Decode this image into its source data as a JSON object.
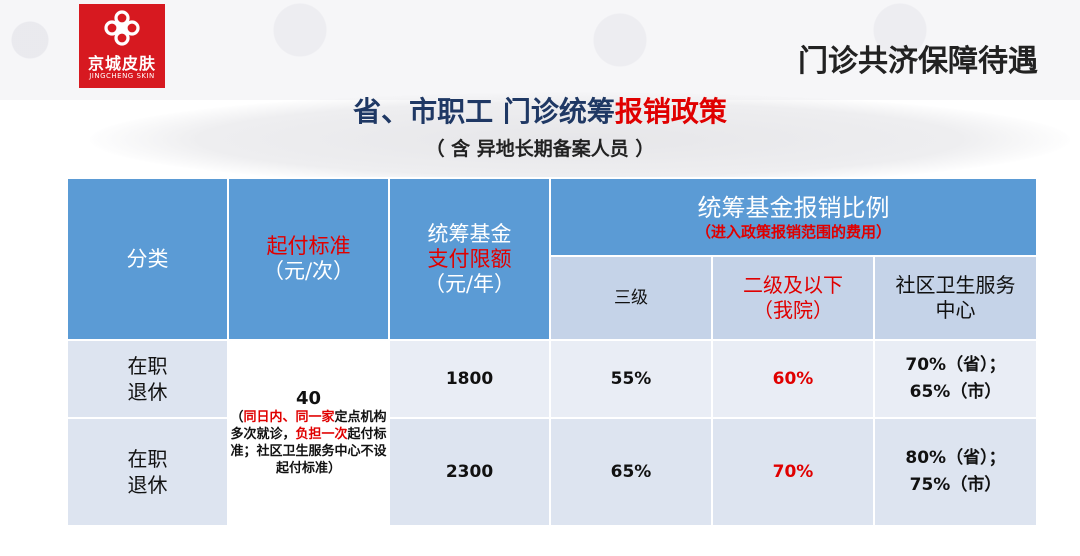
{
  "brand": {
    "name": "京城皮肤",
    "subtitle": "JINGCHENG SKIN",
    "logo_color": "#d71920"
  },
  "header": {
    "section_title": "门诊共济保障待遇",
    "title_part1": "省、市职工 门诊统筹",
    "title_part2": "报销政策",
    "subtitle": "（ 含 异地长期备案人员 ）"
  },
  "table": {
    "col_category": "分类",
    "col_deductible_1": "起付标准",
    "col_deductible_2": "（元/次）",
    "col_limit_1": "统筹基金",
    "col_limit_2": "支付限额",
    "col_limit_3": "（元/年）",
    "col_ratio": "统筹基金报销比例",
    "col_ratio_note": "（进入政策报销范围的费用）",
    "sub_level3": "三级",
    "sub_level2_1": "二级及以下",
    "sub_level2_2": "（我院）",
    "sub_community_1": "社区卫生服务",
    "sub_community_2": "中心",
    "deductible_value": "40",
    "deductible_note_a": "（",
    "deductible_note_b": "同日内、同一家",
    "deductible_note_c": "定点机构多次就诊，",
    "deductible_note_d": "负担一次",
    "deductible_note_e": "起付标准；社区卫生服务中心不设起付标准）",
    "rows": [
      {
        "category_1": "在职",
        "category_2": "退休",
        "limit": "1800",
        "level3": "55%",
        "level2": "60%",
        "community_1": "70%（省）；",
        "community_2": "65%（市）"
      },
      {
        "category_1": "在职",
        "category_2": "退休",
        "limit": "2300",
        "level3": "65%",
        "level2": "70%",
        "community_1": "80%（省）；",
        "community_2": "75%（市）"
      }
    ]
  },
  "colors": {
    "header_blue": "#5b9bd5",
    "subheader_blue": "#c5d3e8",
    "row_bg": "#dde4f0",
    "accent_red": "#e00000",
    "title_navy": "#1f3864"
  }
}
